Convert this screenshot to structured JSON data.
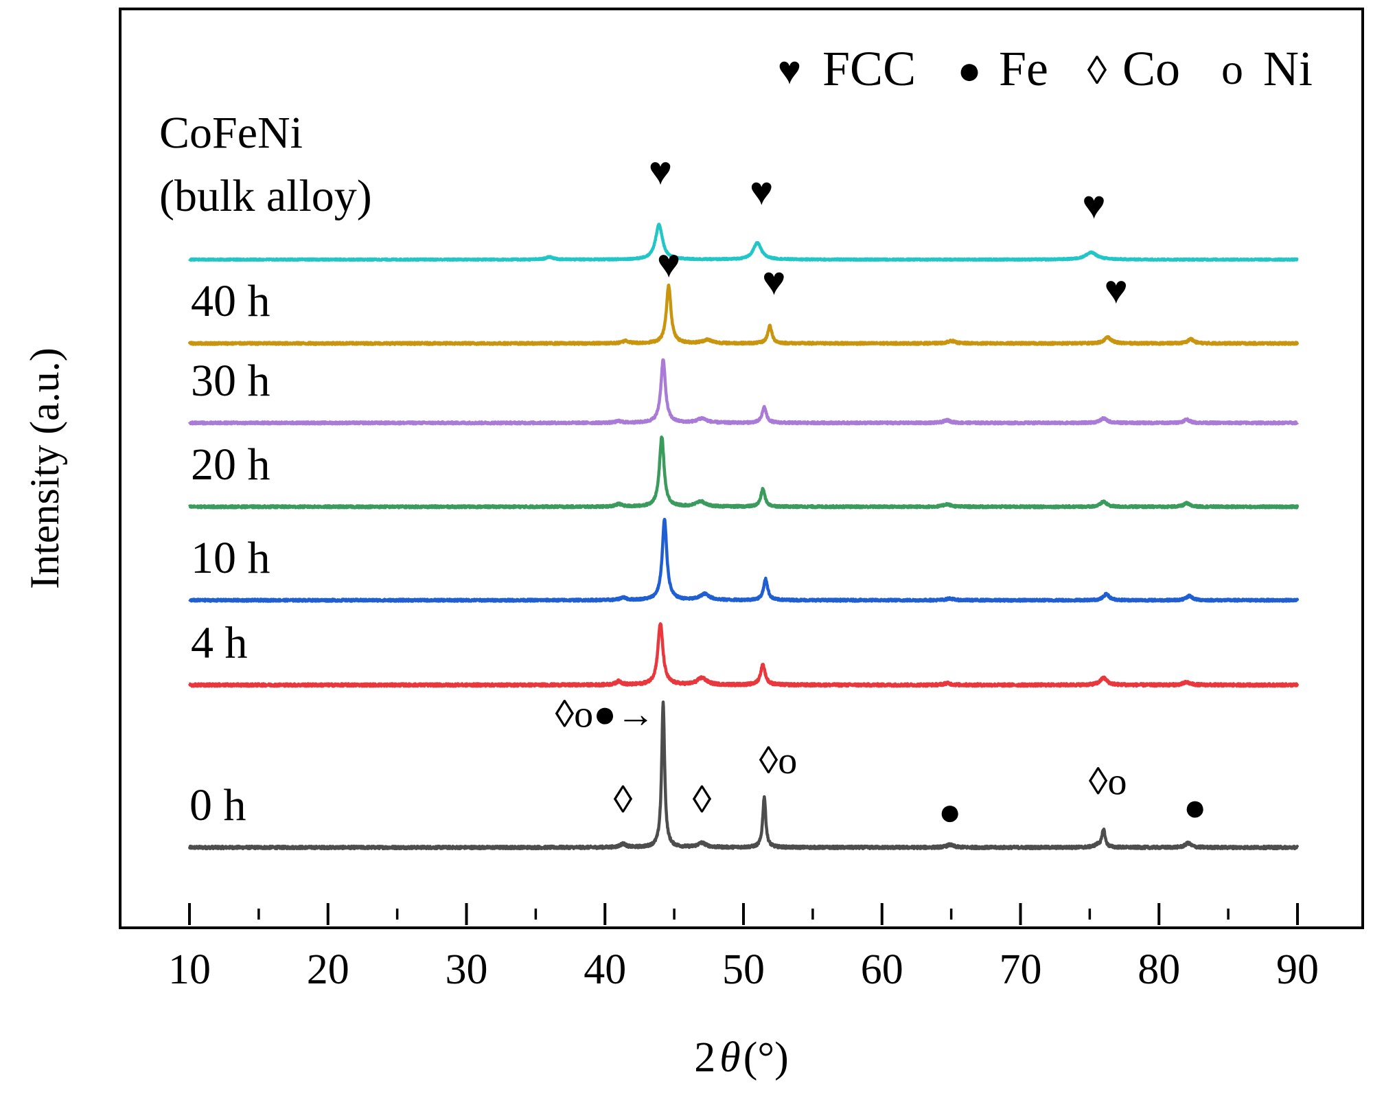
{
  "chart_data": {
    "type": "line",
    "xlabel_main": "2",
    "xlabel_symbol": "θ",
    "xlabel_unit": "(°)",
    "ylabel": "Intensity (a.u.)",
    "xlim": [
      5,
      93
    ],
    "ylim": [
      0,
      100
    ],
    "y_ticks": "none",
    "grid": false,
    "x_ticks": [
      {
        "value": 10,
        "label": "10"
      },
      {
        "value": 20,
        "label": "20"
      },
      {
        "value": 30,
        "label": "30"
      },
      {
        "value": 40,
        "label": "40"
      },
      {
        "value": 50,
        "label": "50"
      },
      {
        "value": 60,
        "label": "60"
      },
      {
        "value": 70,
        "label": "70"
      },
      {
        "value": 80,
        "label": "80"
      },
      {
        "value": 90,
        "label": "90"
      }
    ],
    "x_minor_ticks": [
      15,
      25,
      35,
      45,
      55,
      65,
      75,
      85
    ],
    "legend": {
      "placement": "top-right",
      "entries": [
        {
          "symbol": "♥",
          "label": "FCC"
        },
        {
          "symbol": "●",
          "label": "Fe"
        },
        {
          "symbol": "◊",
          "label": "Co"
        },
        {
          "symbol": "o",
          "label": "Ni"
        }
      ]
    },
    "x_start": 10,
    "x_end": 90,
    "series": [
      {
        "name": "0 h",
        "label": "0 h",
        "color": "#4d4d4d",
        "baseline": 9.2,
        "noise": 0.15,
        "peaks": [
          [
            41.3,
            0.4,
            0.25
          ],
          [
            44.2,
            16.5,
            0.13
          ],
          [
            47.0,
            0.5,
            0.35
          ],
          [
            51.5,
            5.8,
            0.13
          ],
          [
            64.9,
            0.3,
            0.3
          ],
          [
            76.0,
            2.0,
            0.13
          ],
          [
            75.6,
            0.3,
            0.3
          ],
          [
            82.1,
            0.5,
            0.25
          ]
        ],
        "annotations": [
          {
            "text": "◊",
            "x": 41.3,
            "height": 4.0
          },
          {
            "text": "◊o●→",
            "x": 40.0,
            "height": 13.8
          },
          {
            "text": "◊",
            "x": 47.0,
            "height": 4.0
          },
          {
            "text": "◊o",
            "x": 52.5,
            "height": 8.5
          },
          {
            "text": "●",
            "x": 64.9,
            "height": 2.6
          },
          {
            "text": "◊o",
            "x": 76.3,
            "height": 6.1
          },
          {
            "text": "●",
            "x": 82.6,
            "height": 3.1
          }
        ]
      },
      {
        "name": "4 h",
        "label": "4 h",
        "color": "#e8383d",
        "baseline": 27.8,
        "noise": 0.15,
        "peaks": [
          [
            41.0,
            0.4,
            0.25
          ],
          [
            44.0,
            7.0,
            0.22
          ],
          [
            47.0,
            0.8,
            0.4
          ],
          [
            51.4,
            2.3,
            0.2
          ],
          [
            64.7,
            0.2,
            0.3
          ],
          [
            76.0,
            0.8,
            0.3
          ],
          [
            82.0,
            0.3,
            0.3
          ]
        ]
      },
      {
        "name": "10 h",
        "label": "10 h",
        "color": "#1f5fd1",
        "baseline": 37.5,
        "noise": 0.12,
        "peaks": [
          [
            41.3,
            0.3,
            0.25
          ],
          [
            44.3,
            9.2,
            0.2
          ],
          [
            47.2,
            0.7,
            0.4
          ],
          [
            51.6,
            2.4,
            0.18
          ],
          [
            64.9,
            0.2,
            0.3
          ],
          [
            76.2,
            0.7,
            0.25
          ],
          [
            82.2,
            0.5,
            0.25
          ]
        ]
      },
      {
        "name": "20 h",
        "label": "20 h",
        "color": "#3a9b5c",
        "baseline": 48.2,
        "noise": 0.12,
        "peaks": [
          [
            41.0,
            0.3,
            0.25
          ],
          [
            44.1,
            8.0,
            0.2
          ],
          [
            46.9,
            0.6,
            0.4
          ],
          [
            51.4,
            2.0,
            0.18
          ],
          [
            64.7,
            0.3,
            0.3
          ],
          [
            76.0,
            0.6,
            0.25
          ],
          [
            82.0,
            0.4,
            0.25
          ]
        ]
      },
      {
        "name": "30 h",
        "label": "30 h",
        "color": "#a97ad6",
        "baseline": 57.8,
        "noise": 0.12,
        "peaks": [
          [
            41.0,
            0.2,
            0.25
          ],
          [
            44.2,
            7.2,
            0.2
          ],
          [
            47.0,
            0.5,
            0.4
          ],
          [
            51.5,
            1.8,
            0.18
          ],
          [
            64.7,
            0.3,
            0.3
          ],
          [
            76.0,
            0.5,
            0.3
          ],
          [
            82.0,
            0.4,
            0.25
          ]
        ]
      },
      {
        "name": "40 h",
        "label": "40 h",
        "color": "#c9950f",
        "baseline": 66.9,
        "noise": 0.12,
        "peaks": [
          [
            41.5,
            0.3,
            0.25
          ],
          [
            44.6,
            6.6,
            0.2
          ],
          [
            47.4,
            0.4,
            0.4
          ],
          [
            51.9,
            2.0,
            0.18
          ],
          [
            65.0,
            0.3,
            0.3
          ],
          [
            76.3,
            0.7,
            0.3
          ],
          [
            82.3,
            0.5,
            0.25
          ]
        ],
        "annotations": [
          {
            "text": "♥",
            "x": 44.6,
            "height": 7.6
          },
          {
            "text": "♥",
            "x": 52.2,
            "height": 5.6
          },
          {
            "text": "♥",
            "x": 76.9,
            "height": 4.6
          }
        ]
      },
      {
        "name": "CoFeNi (bulk alloy)",
        "label_lines": [
          "CoFeNi",
          "(bulk alloy)"
        ],
        "color": "#22c6c7",
        "baseline": 76.5,
        "noise": 0.08,
        "peaks": [
          [
            36.0,
            0.3,
            0.3
          ],
          [
            43.9,
            4.0,
            0.3
          ],
          [
            51.0,
            1.9,
            0.35
          ],
          [
            75.1,
            0.8,
            0.5
          ]
        ],
        "annotations": [
          {
            "text": "♥",
            "x": 44.0,
            "height": 8.6
          },
          {
            "text": "♥",
            "x": 51.3,
            "height": 6.3
          },
          {
            "text": "♥",
            "x": 75.3,
            "height": 4.7
          }
        ]
      }
    ]
  }
}
